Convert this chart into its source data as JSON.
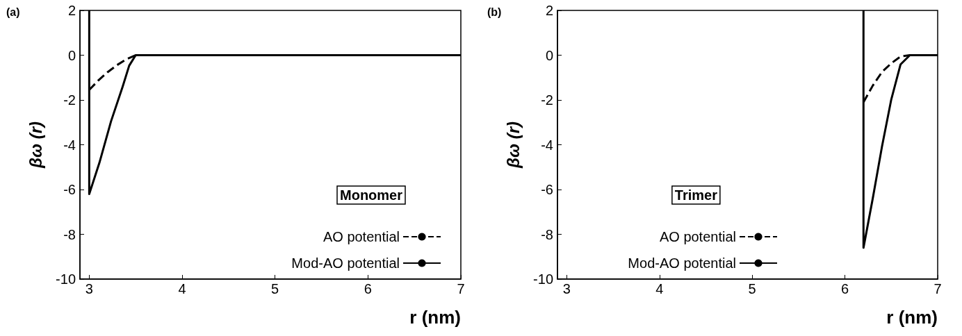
{
  "chart_data": [
    {
      "type": "line",
      "title": "(a)",
      "xlabel": "r (nm)",
      "ylabel": "βω (r)",
      "annotations": [
        "Monomer"
      ],
      "xlim": [
        2.9,
        7
      ],
      "xticks": [
        3,
        4,
        5,
        6,
        7
      ],
      "ylim": [
        -10,
        2
      ],
      "yticks": [
        -10,
        -8,
        -6,
        -4,
        -2,
        0,
        2
      ],
      "grid": false,
      "legend": "bottom right",
      "marker": "none",
      "series": [
        {
          "name": "AO potential",
          "color": "#000000",
          "line_style": "dashed",
          "x": [
            3.0,
            3.1,
            3.2,
            3.3,
            3.4,
            3.5,
            7.0
          ],
          "values": [
            -1.55,
            -1.12,
            -0.75,
            -0.44,
            -0.18,
            0,
            0
          ]
        },
        {
          "name": "Mod-AO potential",
          "color": "#000000",
          "line_style": "solid",
          "x": [
            3.0,
            3.0,
            3.11,
            3.235,
            3.36,
            3.43,
            3.5,
            7.0
          ],
          "values": [
            2,
            -6.2,
            -4.8,
            -2.95,
            -1.4,
            -0.47,
            0,
            0
          ]
        }
      ]
    },
    {
      "type": "line",
      "title": "(b)",
      "xlabel": "r (nm)",
      "ylabel": "βω (r)",
      "annotations": [
        "Trimer"
      ],
      "xlim": [
        2.9,
        7
      ],
      "xticks": [
        3,
        4,
        5,
        6,
        7
      ],
      "ylim": [
        -10,
        2
      ],
      "yticks": [
        -10,
        -8,
        -6,
        -4,
        -2,
        0,
        2
      ],
      "grid": false,
      "legend": "bottom",
      "marker": "none",
      "series": [
        {
          "name": "AO potential",
          "color": "#000000",
          "line_style": "dashed",
          "x": [
            6.2,
            6.3,
            6.4,
            6.5,
            6.6,
            6.7,
            7.0
          ],
          "values": [
            -2.1,
            -1.36,
            -0.75,
            -0.36,
            -0.06,
            0,
            0
          ]
        },
        {
          "name": "Mod-AO potential",
          "color": "#000000",
          "line_style": "solid",
          "x": [
            6.2,
            6.2,
            6.3,
            6.4,
            6.5,
            6.6,
            6.7,
            7.0
          ],
          "values": [
            2,
            -8.6,
            -6.4,
            -4.07,
            -1.97,
            -0.41,
            0,
            0
          ]
        }
      ]
    }
  ]
}
